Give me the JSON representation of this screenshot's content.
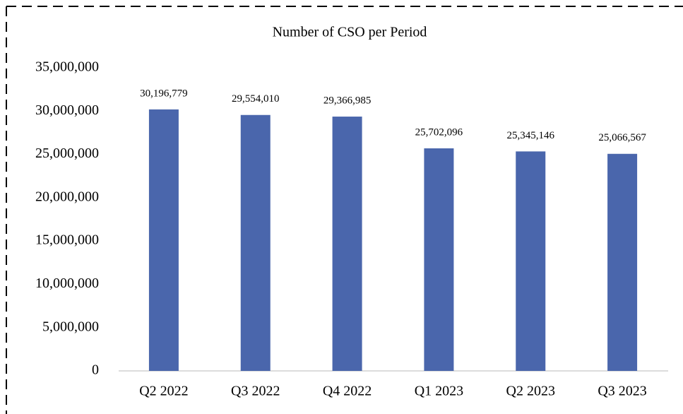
{
  "chart_data": {
    "type": "bar",
    "title": "Number of CSO per Period",
    "categories": [
      "Q2 2022",
      "Q3 2022",
      "Q4 2022",
      "Q1 2023",
      "Q2 2023",
      "Q3 2023"
    ],
    "values": [
      30196779,
      29554010,
      29366985,
      25702096,
      25345146,
      25066567
    ],
    "value_labels": [
      "30,196,779",
      "29,554,010",
      "29,366,985",
      "25,702,096",
      "25,345,146",
      "25,066,567"
    ],
    "color": "#4a66ac",
    "ylim": [
      0,
      35000000
    ],
    "yticks": [
      0,
      {
        "value": 5000000,
        "label": "5,000,000"
      },
      {
        "value": 10000000,
        "label": "10,000,000"
      },
      {
        "value": 15000000,
        "label": "15,000,000"
      },
      {
        "value": 20000000,
        "label": "20,000,000"
      },
      {
        "value": 25000000,
        "label": "25,000,000"
      },
      {
        "value": 30000000,
        "label": "30,000,000"
      },
      {
        "value": 35000000,
        "label": "35,000,000"
      }
    ],
    "grid": false
  }
}
